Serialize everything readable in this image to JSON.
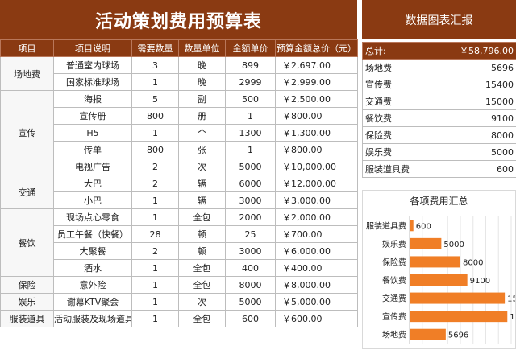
{
  "title": "活动策划费用预算表",
  "headers": [
    "项目",
    "项目说明",
    "需要数量",
    "数量单位",
    "金额单价",
    "预算金额总价（元）"
  ],
  "groups": [
    {
      "category": "场地费",
      "items": [
        {
          "desc": "普通室内球场",
          "qty": "3",
          "unit": "晚",
          "price": "899",
          "total": "￥2,697.00"
        },
        {
          "desc": "国家标准球场",
          "qty": "1",
          "unit": "晚",
          "price": "2999",
          "total": "￥2,999.00"
        }
      ]
    },
    {
      "category": "宣传",
      "items": [
        {
          "desc": "海报",
          "qty": "5",
          "unit": "副",
          "price": "500",
          "total": "￥2,500.00"
        },
        {
          "desc": "宣传册",
          "qty": "800",
          "unit": "册",
          "price": "1",
          "total": "￥800.00"
        },
        {
          "desc": "H5",
          "qty": "1",
          "unit": "个",
          "price": "1300",
          "total": "￥1,300.00"
        },
        {
          "desc": "传单",
          "qty": "800",
          "unit": "张",
          "price": "1",
          "total": "￥800.00"
        },
        {
          "desc": "电视广告",
          "qty": "2",
          "unit": "次",
          "price": "5000",
          "total": "￥10,000.00"
        }
      ]
    },
    {
      "category": "交通",
      "items": [
        {
          "desc": "大巴",
          "qty": "2",
          "unit": "辆",
          "price": "6000",
          "total": "￥12,000.00"
        },
        {
          "desc": "小巴",
          "qty": "1",
          "unit": "辆",
          "price": "3000",
          "total": "￥3,000.00"
        }
      ]
    },
    {
      "category": "餐饮",
      "items": [
        {
          "desc": "现场点心零食",
          "qty": "1",
          "unit": "全包",
          "price": "2000",
          "total": "￥2,000.00"
        },
        {
          "desc": "员工午餐（快餐）",
          "qty": "28",
          "unit": "顿",
          "price": "25",
          "total": "￥700.00"
        },
        {
          "desc": "大聚餐",
          "qty": "2",
          "unit": "顿",
          "price": "3000",
          "total": "￥6,000.00"
        },
        {
          "desc": "酒水",
          "qty": "1",
          "unit": "全包",
          "price": "400",
          "total": "￥400.00"
        }
      ]
    },
    {
      "category": "保险",
      "items": [
        {
          "desc": "意外险",
          "qty": "1",
          "unit": "全包",
          "price": "8000",
          "total": "￥8,000.00"
        }
      ]
    },
    {
      "category": "娱乐",
      "items": [
        {
          "desc": "谢幕KTV聚会",
          "qty": "1",
          "unit": "次",
          "price": "5000",
          "total": "￥5,000.00"
        }
      ]
    },
    {
      "category": "服装道具",
      "items": [
        {
          "desc": "活动服装及现场道具",
          "qty": "1",
          "unit": "全包",
          "price": "600",
          "total": "￥600.00"
        }
      ]
    }
  ],
  "summary": {
    "title": "数据图表汇报",
    "total_label": "总计:",
    "total_value": "￥58,796.00",
    "rows": [
      {
        "label": "场地费",
        "value": "5696"
      },
      {
        "label": "宣传费",
        "value": "15400"
      },
      {
        "label": "交通费",
        "value": "15000"
      },
      {
        "label": "餐饮费",
        "value": "9100"
      },
      {
        "label": "保险费",
        "value": "8000"
      },
      {
        "label": "娱乐费",
        "value": "5000"
      },
      {
        "label": "服装道具费",
        "value": "600"
      }
    ]
  },
  "chart_data": {
    "type": "bar",
    "orientation": "horizontal",
    "title": "各项费用汇总",
    "categories": [
      "服装道具费",
      "娱乐费",
      "保险费",
      "餐饮费",
      "交通费",
      "宣传费",
      "场地费"
    ],
    "values": [
      600,
      5000,
      8000,
      9100,
      15000,
      15400,
      5696
    ],
    "xlim": [
      0,
      16000
    ],
    "bar_color": "#f07e26",
    "grid": true
  },
  "colors": {
    "header_bg": "#8a3a12",
    "bar": "#f07e26"
  }
}
